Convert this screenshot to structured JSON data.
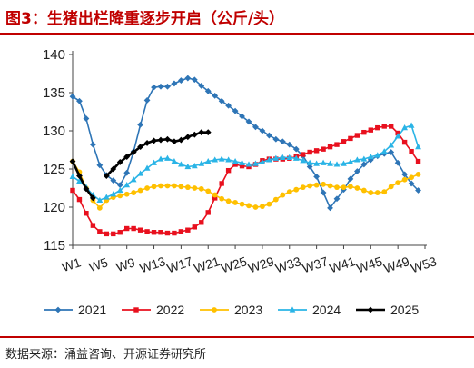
{
  "header": {
    "title": "图3：生猪出栏降重逐步开启（公斤/头）"
  },
  "footer": {
    "source": "数据来源：涌益咨询、开源证券研究所"
  },
  "chart_data": {
    "type": "line",
    "ylim": [
      115,
      140
    ],
    "yticks": [
      115,
      120,
      125,
      130,
      135,
      140
    ],
    "x_tick_labels": [
      "W1",
      "W5",
      "W9",
      "W13",
      "W17",
      "W21",
      "W25",
      "W29",
      "W33",
      "W37",
      "W41",
      "W45",
      "W49",
      "W53"
    ],
    "x_tick_weeks": [
      1,
      5,
      9,
      13,
      17,
      21,
      25,
      29,
      33,
      37,
      41,
      45,
      49,
      53
    ],
    "grid": false,
    "legend_position": "bottom",
    "series": [
      {
        "name": "2021",
        "color": "#2e75b6",
        "marker": "diamond",
        "weeks": [
          1,
          2,
          3,
          4,
          5,
          6,
          7,
          8,
          9,
          10,
          11,
          12,
          13,
          14,
          15,
          16,
          17,
          18,
          19,
          20,
          21,
          22,
          23,
          24,
          25,
          26,
          27,
          28,
          29,
          30,
          31,
          32,
          33,
          34,
          35,
          36,
          37,
          38,
          39,
          40,
          41,
          42,
          43,
          44,
          45,
          46,
          47,
          48,
          49,
          50,
          51,
          52
        ],
        "values": [
          134.5,
          133.9,
          131.6,
          128.2,
          125.5,
          124.2,
          123.5,
          122.9,
          124.5,
          127.3,
          130.8,
          134.0,
          135.7,
          135.8,
          135.8,
          136.2,
          136.6,
          136.9,
          136.7,
          135.9,
          135.2,
          134.6,
          133.9,
          133.3,
          132.6,
          131.9,
          131.2,
          130.5,
          130.0,
          129.4,
          128.9,
          128.6,
          128.2,
          127.6,
          126.7,
          125.3,
          124.0,
          121.9,
          119.9,
          121.1,
          122.3,
          123.7,
          124.7,
          125.6,
          126.2,
          126.7,
          127.0,
          127.2,
          125.8,
          124.3,
          123.1,
          122.2
        ]
      },
      {
        "name": "2022",
        "color": "#e8101e",
        "marker": "square",
        "weeks": [
          1,
          2,
          3,
          4,
          5,
          6,
          7,
          8,
          9,
          10,
          11,
          12,
          13,
          14,
          15,
          16,
          17,
          18,
          19,
          20,
          21,
          22,
          23,
          24,
          25,
          26,
          27,
          28,
          29,
          30,
          31,
          32,
          33,
          34,
          35,
          36,
          37,
          38,
          39,
          40,
          41,
          42,
          43,
          44,
          45,
          46,
          47,
          48,
          49,
          50,
          51,
          52
        ],
        "values": [
          122.2,
          121.0,
          119.2,
          117.6,
          116.8,
          116.5,
          116.5,
          116.7,
          117.2,
          117.2,
          117.0,
          116.8,
          116.7,
          116.7,
          116.6,
          116.6,
          116.8,
          117.0,
          117.4,
          118.0,
          119.3,
          121.2,
          123.1,
          124.8,
          125.6,
          125.4,
          125.3,
          125.6,
          126.1,
          126.3,
          126.3,
          126.3,
          126.4,
          126.6,
          126.9,
          127.2,
          127.4,
          127.6,
          127.9,
          128.2,
          128.6,
          129.0,
          129.4,
          129.8,
          130.1,
          130.4,
          130.6,
          130.6,
          129.7,
          128.5,
          127.3,
          126.0
        ]
      },
      {
        "name": "2023",
        "color": "#ffc000",
        "marker": "circle",
        "weeks": [
          1,
          2,
          3,
          4,
          5,
          6,
          7,
          8,
          9,
          10,
          11,
          12,
          13,
          14,
          15,
          16,
          17,
          18,
          19,
          20,
          21,
          22,
          23,
          24,
          25,
          26,
          27,
          28,
          29,
          30,
          31,
          32,
          33,
          34,
          35,
          36,
          37,
          38,
          39,
          40,
          41,
          42,
          43,
          44,
          45,
          46,
          47,
          48,
          49,
          50,
          51,
          52
        ],
        "values": [
          126.0,
          124.6,
          122.5,
          120.9,
          119.9,
          120.9,
          121.3,
          121.5,
          121.7,
          121.9,
          122.2,
          122.5,
          122.7,
          122.8,
          122.8,
          122.8,
          122.7,
          122.6,
          122.5,
          122.4,
          122.1,
          121.6,
          121.1,
          120.8,
          120.6,
          120.4,
          120.2,
          120.0,
          120.1,
          120.4,
          121.0,
          121.6,
          122.0,
          122.3,
          122.6,
          122.8,
          122.9,
          123.0,
          122.8,
          122.6,
          122.6,
          122.7,
          122.5,
          122.2,
          121.9,
          121.9,
          122.0,
          122.7,
          123.2,
          123.6,
          123.9,
          124.3
        ]
      },
      {
        "name": "2024",
        "color": "#2ab4e6",
        "marker": "triangle",
        "weeks": [
          1,
          2,
          3,
          4,
          5,
          6,
          7,
          8,
          9,
          10,
          11,
          12,
          13,
          14,
          15,
          16,
          17,
          18,
          19,
          20,
          21,
          22,
          23,
          24,
          25,
          26,
          27,
          28,
          29,
          30,
          31,
          32,
          33,
          34,
          35,
          36,
          37,
          38,
          39,
          40,
          41,
          42,
          43,
          44,
          45,
          46,
          47,
          48,
          49,
          50,
          51,
          52
        ],
        "values": [
          124.0,
          123.4,
          122.6,
          121.6,
          120.9,
          121.3,
          121.7,
          122.2,
          122.9,
          123.6,
          124.4,
          125.1,
          125.8,
          126.3,
          126.4,
          126.0,
          125.6,
          125.3,
          125.4,
          125.7,
          126.0,
          126.2,
          126.3,
          126.2,
          126.0,
          125.8,
          125.6,
          125.7,
          125.9,
          126.2,
          126.4,
          126.5,
          126.5,
          126.4,
          126.1,
          125.8,
          125.7,
          125.8,
          125.7,
          125.6,
          125.7,
          125.9,
          126.2,
          126.3,
          126.6,
          126.8,
          127.3,
          128.1,
          129.3,
          130.4,
          130.7,
          127.9
        ]
      },
      {
        "name": "2025",
        "color": "#000000",
        "marker": "diamond",
        "weeks": [
          1,
          2,
          3,
          4,
          5,
          6,
          7,
          8,
          9,
          10,
          11,
          12,
          13,
          14,
          15,
          16,
          17,
          18,
          19,
          20,
          21
        ],
        "values": [
          126.0,
          124.1,
          122.4,
          121.2,
          null,
          124.1,
          125.0,
          125.9,
          126.6,
          127.2,
          127.9,
          128.4,
          128.7,
          128.8,
          128.9,
          128.6,
          128.8,
          129.2,
          129.5,
          129.8,
          129.8
        ]
      }
    ]
  }
}
